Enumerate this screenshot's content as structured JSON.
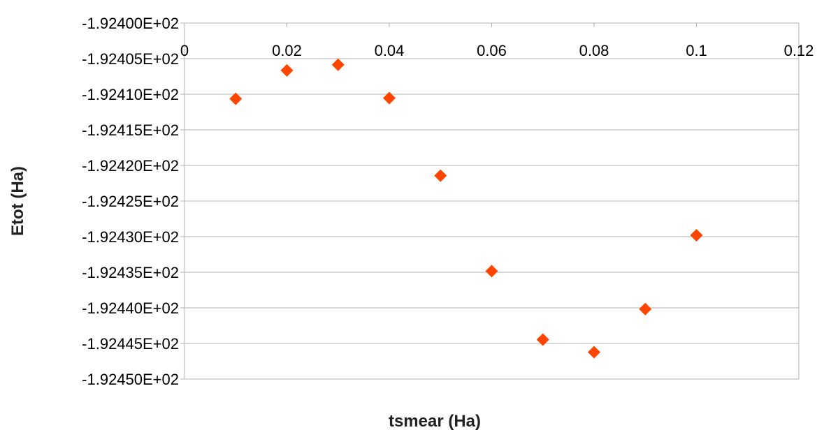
{
  "chart_data": {
    "type": "scatter",
    "title": "",
    "xlabel": "tsmear (Ha)",
    "ylabel": "Etot (Ha)",
    "xlim": [
      0,
      0.12
    ],
    "ylim": [
      -192.445,
      -192.4
    ],
    "x_ticks": [
      0,
      0.02,
      0.04,
      0.06,
      0.08,
      0.1,
      0.12
    ],
    "x_tick_labels": [
      "0",
      "0.02",
      "0.04",
      "0.06",
      "0.08",
      "0.1",
      "0.12"
    ],
    "y_ticks": [
      -192.4,
      -192.405,
      -192.41,
      -192.415,
      -192.42,
      -192.425,
      -192.43,
      -192.435,
      -192.44,
      -192.445,
      -192.45
    ],
    "y_tick_labels": [
      "-1.92400E+02",
      "-1.92405E+02",
      "-1.92410E+02",
      "-1.92415E+02",
      "-1.92420E+02",
      "-1.92425E+02",
      "-1.92430E+02",
      "-1.92435E+02",
      "-1.92440E+02",
      "-1.92445E+02",
      "-1.92450E+02"
    ],
    "x_axis_position": "top",
    "grid": true,
    "legend": false,
    "series": [
      {
        "color": "#FF4500",
        "marker": "diamond",
        "points": [
          {
            "x": 0.01,
            "y": -192.41064
          },
          {
            "x": 0.02,
            "y": -192.40666
          },
          {
            "x": 0.03,
            "y": -192.40586
          },
          {
            "x": 0.04,
            "y": -192.41054
          },
          {
            "x": 0.05,
            "y": -192.42143
          },
          {
            "x": 0.06,
            "y": -192.43484
          },
          {
            "x": 0.07,
            "y": -192.44446
          },
          {
            "x": 0.08,
            "y": -192.44623
          },
          {
            "x": 0.09,
            "y": -192.44017
          },
          {
            "x": 0.1,
            "y": -192.42981
          }
        ]
      }
    ]
  }
}
